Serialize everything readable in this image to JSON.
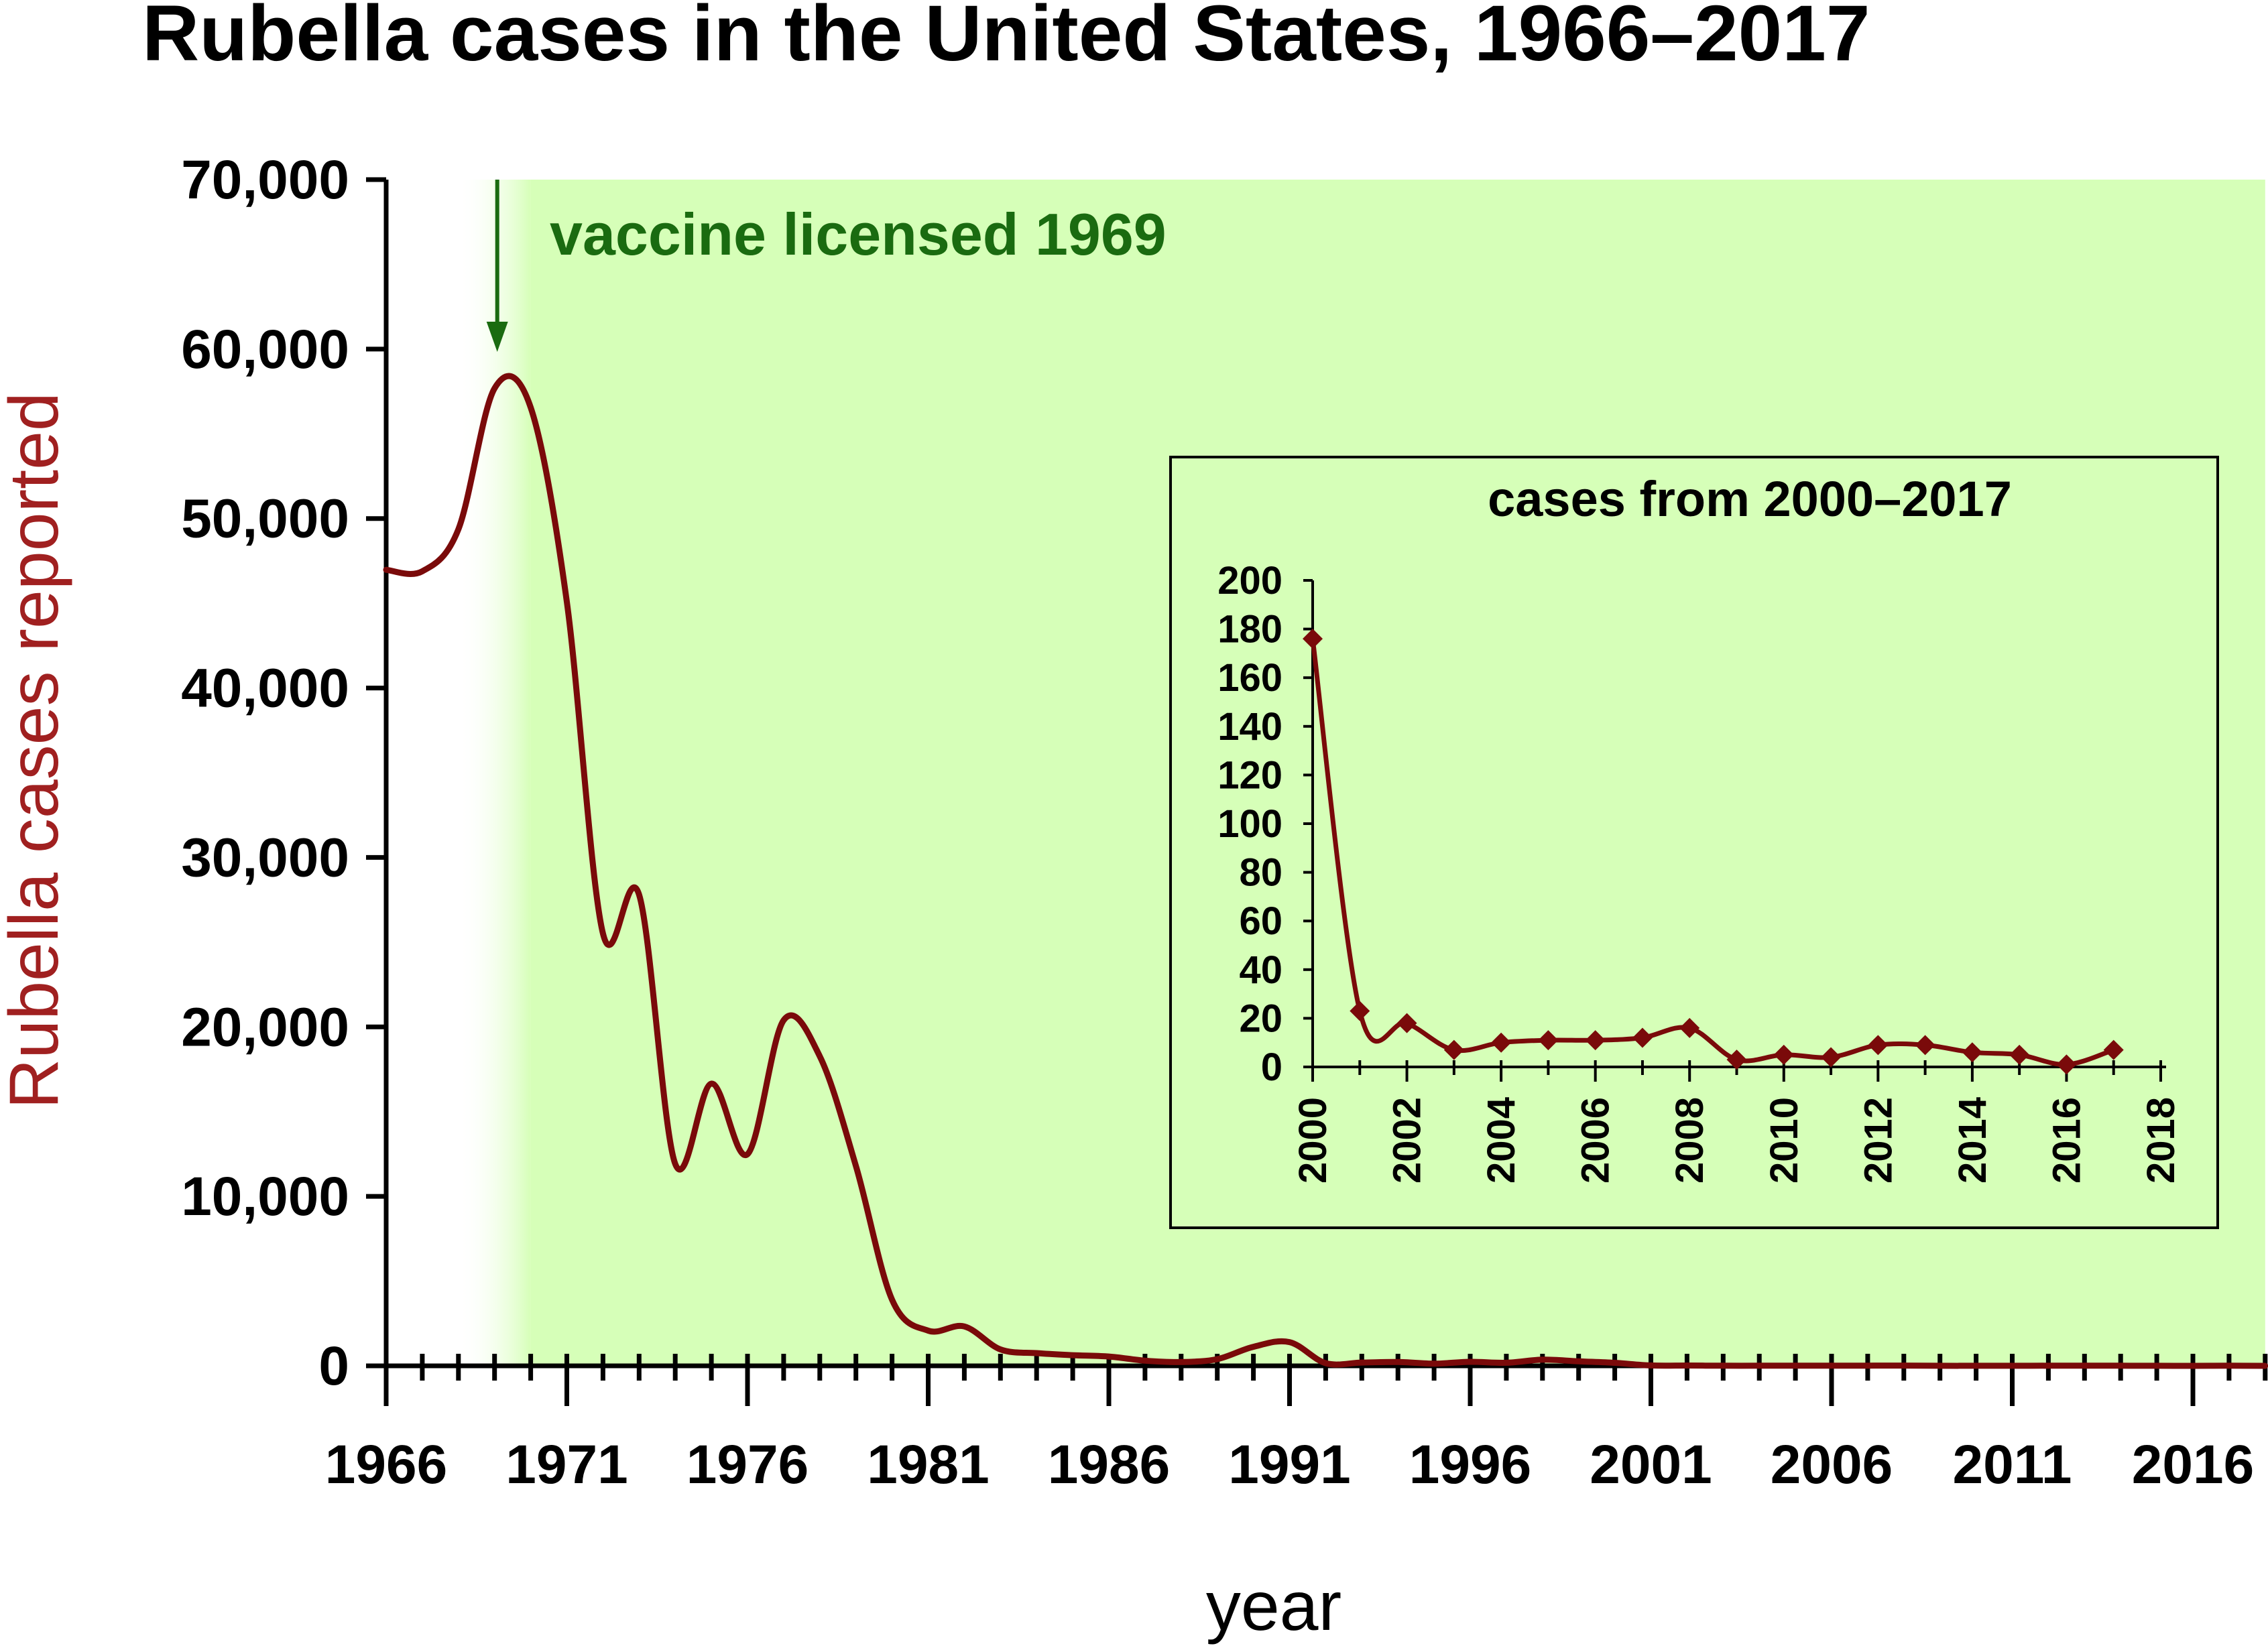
{
  "chart_data": [
    {
      "type": "line",
      "title": "Rubella cases in the United States, 1966–2017",
      "xlabel": "year",
      "ylabel": "Rubella cases reported",
      "xlim": [
        1966,
        2018
      ],
      "ylim": [
        0,
        70000
      ],
      "x_ticks": [
        1966,
        1971,
        1976,
        1981,
        1986,
        1991,
        1996,
        2001,
        2006,
        2011,
        2016
      ],
      "y_ticks": [
        0,
        10000,
        20000,
        30000,
        40000,
        50000,
        60000,
        70000
      ],
      "x_tick_labels": [
        "1966",
        "1971",
        "1976",
        "1981",
        "1986",
        "1991",
        "1996",
        "2001",
        "2006",
        "2011",
        "2016"
      ],
      "y_tick_labels": [
        "0",
        "10,000",
        "20,000",
        "30,000",
        "40,000",
        "50,000",
        "60,000",
        "70,000"
      ],
      "annotation": {
        "text": "vaccine licensed 1969",
        "year": 1969
      },
      "shaded_region": {
        "from_year": 1968,
        "to_year": 2018,
        "color": "#d6ffb8"
      },
      "line_color": "#7a0a0a",
      "series": [
        {
          "x": [
            1966,
            1967,
            1968,
            1969,
            1970,
            1971,
            1972,
            1973,
            1974,
            1975,
            1976,
            1977,
            1978,
            1979,
            1980,
            1981,
            1982,
            1983,
            1984,
            1985,
            1986,
            1987,
            1988,
            1989,
            1990,
            1991,
            1992,
            1993,
            1994,
            1995,
            1996,
            1997,
            1998,
            1999,
            2000,
            2001,
            2002,
            2003,
            2004,
            2005,
            2006,
            2007,
            2008,
            2009,
            2010,
            2011,
            2012,
            2013,
            2014,
            2015,
            2016,
            2017
          ],
          "y": [
            46975,
            46888,
            49371,
            57686,
            56552,
            45086,
            25507,
            27804,
            11917,
            16652,
            12491,
            20395,
            18269,
            11795,
            3904,
            2077,
            2325,
            970,
            752,
            630,
            551,
            306,
            225,
            396,
            1125,
            1401,
            160,
            192,
            227,
            128,
            238,
            181,
            364,
            267,
            176,
            23,
            18,
            7,
            10,
            11,
            11,
            12,
            16,
            3,
            5,
            4,
            9,
            9,
            6,
            5,
            1,
            7
          ]
        }
      ]
    },
    {
      "type": "line",
      "title": "cases from 2000–2017",
      "xlim": [
        2000,
        2018
      ],
      "ylim": [
        0,
        200
      ],
      "x_ticks": [
        2000,
        2002,
        2004,
        2006,
        2008,
        2010,
        2012,
        2014,
        2016,
        2018
      ],
      "y_ticks": [
        0,
        20,
        40,
        60,
        80,
        100,
        120,
        140,
        160,
        180,
        200
      ],
      "x_tick_labels": [
        "2000",
        "2002",
        "2004",
        "2006",
        "2008",
        "2010",
        "2012",
        "2014",
        "2016",
        "2018"
      ],
      "y_tick_labels": [
        "0",
        "20",
        "40",
        "60",
        "80",
        "100",
        "120",
        "140",
        "160",
        "180",
        "200"
      ],
      "markers": "diamond",
      "line_color": "#7a0a0a",
      "series": [
        {
          "x": [
            2000,
            2001,
            2002,
            2003,
            2004,
            2005,
            2006,
            2007,
            2008,
            2009,
            2010,
            2011,
            2012,
            2013,
            2014,
            2015,
            2016,
            2017
          ],
          "y": [
            176,
            23,
            18,
            7,
            10,
            11,
            11,
            12,
            16,
            3,
            5,
            4,
            9,
            9,
            6,
            5,
            1,
            7
          ]
        }
      ]
    }
  ]
}
